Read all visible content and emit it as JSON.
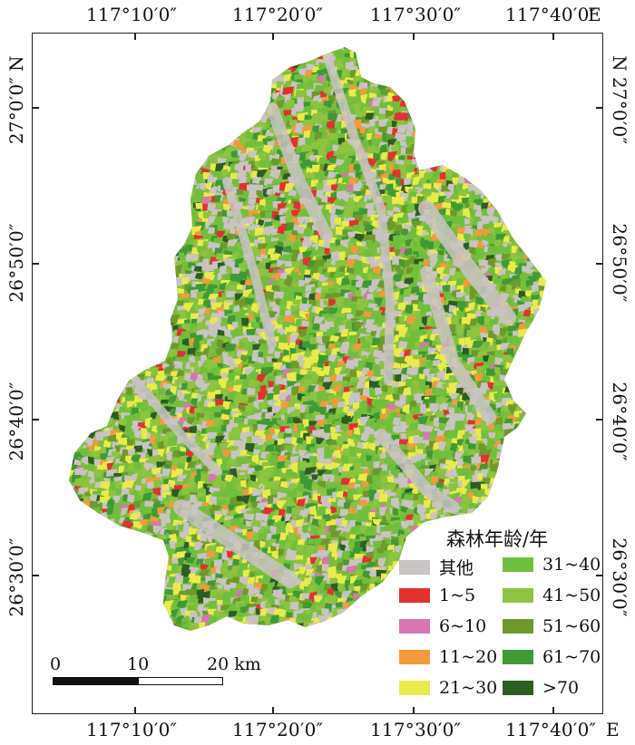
{
  "axis": {
    "top_labels": [
      "117°10′0″",
      "117°20′0″",
      "117°30′0″",
      "117°40′0″"
    ],
    "top_suffix": "E",
    "bottom_labels": [
      "117°10′0″",
      "117°20′0″",
      "117°30′0″",
      "117°40′0″"
    ],
    "bottom_suffix": "E",
    "left_labels": [
      "27°0′0″",
      "26°50′0″",
      "26°40′0″",
      "26°30′0″"
    ],
    "left_suffix": "N",
    "right_labels": [
      "27°0′0″",
      "26°50′0″",
      "26°40′0″",
      "26°30′0″"
    ],
    "right_suffix": "N"
  },
  "legend": {
    "title": "森林年龄/年",
    "items": [
      {
        "label": "其他",
        "color": "#c9c3c3"
      },
      {
        "label": "1~5",
        "color": "#e3312f"
      },
      {
        "label": "6~10",
        "color": "#d875b3"
      },
      {
        "label": "11~20",
        "color": "#f29a3d"
      },
      {
        "label": "21~30",
        "color": "#eaea4c"
      },
      {
        "label": "31~40",
        "color": "#6fbf3c"
      },
      {
        "label": "41~50",
        "color": "#8cc43f"
      },
      {
        "label": "51~60",
        "color": "#6e9a2c"
      },
      {
        "label": "61~70",
        "color": "#3f9a35"
      },
      {
        "label": ">70",
        "color": "#2c5e22"
      }
    ]
  },
  "scale_bar": {
    "labels": [
      "0",
      "10",
      "20 km"
    ]
  }
}
